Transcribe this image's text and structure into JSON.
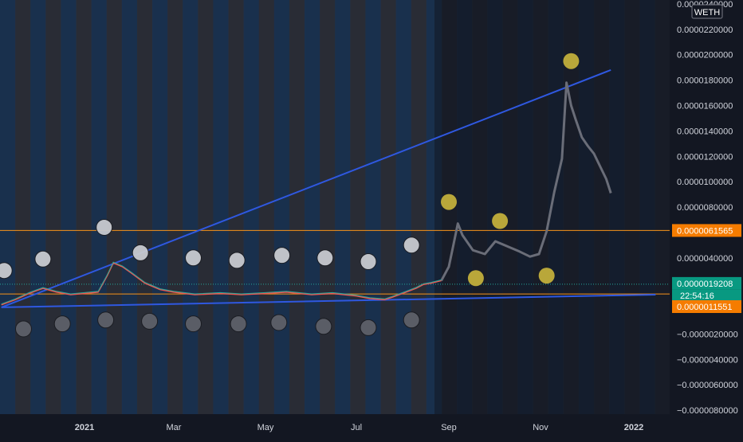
{
  "symbol_badge": "WETH",
  "colors": {
    "background": "#131722",
    "stripe_blue": "#1b3352",
    "stripe_gray": "#2c2f37",
    "trend_line": "#2f58e0",
    "horizontal_level": "#f7931a",
    "price_badge_green": "#089981",
    "price_badge_orange": "#f57c00",
    "actual_green": "#26a69a",
    "actual_red": "#ef5350",
    "projection_gray": "#6a6d78",
    "circle_white": "#c8cacf",
    "circle_gray": "#5a5d66",
    "circle_gold": "#b9a73a"
  },
  "chart_data": {
    "type": "line",
    "y_axis": {
      "ticks": [
        "0.0000240000",
        "0.0000220000",
        "0.0000200000",
        "0.0000180000",
        "0.0000160000",
        "0.0000140000",
        "0.0000120000",
        "0.0000100000",
        "0.0000080000",
        "0.0000060000",
        "0.0000040000",
        "0.0000020000",
        "0.0000000000",
        "−0.0000020000",
        "−0.0000040000",
        "−0.0000060000",
        "−0.0000080000"
      ],
      "ylim": [
        -8.2e-06,
        2.4e-05
      ]
    },
    "x_axis": {
      "ticks": [
        "2021",
        "Mar",
        "May",
        "Jul",
        "Sep",
        "Nov",
        "2022"
      ]
    },
    "price_badges": [
      {
        "label": "0.0000061565",
        "value": 6.1565e-06,
        "color": "orange"
      },
      {
        "label": "0.0000019208",
        "value": 1.9208e-06,
        "color": "green"
      },
      {
        "label": "22:54:16",
        "value": 1.9208e-06,
        "color": "green",
        "sub": true
      },
      {
        "label": "0.0000011551",
        "value": 1.1551e-06,
        "color": "orange"
      }
    ],
    "horizontal_levels": [
      6.1565e-06,
      1.1551e-06
    ],
    "current_price": 1.9208e-06,
    "trend_lines": [
      {
        "from": [
          "2020-11-02",
          1e-07
        ],
        "to": [
          "2021-12-17",
          1.88e-05
        ]
      },
      {
        "from": [
          "2020-11-02",
          1e-07
        ],
        "to": [
          "2022-01-15",
          1.1e-06
        ]
      }
    ],
    "actual_series": {
      "name": "",
      "x": [
        "2020-11-02",
        "2020-11-12",
        "2020-11-22",
        "2020-12-02",
        "2020-12-12",
        "2020-12-22",
        "2021-01-01",
        "2021-01-10",
        "2021-01-16",
        "2021-01-20",
        "2021-01-26",
        "2021-02-01",
        "2021-02-10",
        "2021-02-20",
        "2021-03-01",
        "2021-03-15",
        "2021-04-01",
        "2021-04-15",
        "2021-05-01",
        "2021-05-15",
        "2021-06-01",
        "2021-06-15",
        "2021-07-01",
        "2021-07-10",
        "2021-07-20",
        "2021-07-25",
        "2021-08-01",
        "2021-08-10",
        "2021-08-15",
        "2021-08-20",
        "2021-08-27"
      ],
      "values": [
        3e-07,
        7e-07,
        1.2e-06,
        1.6e-06,
        1.3e-06,
        1.1e-06,
        1.2e-06,
        1.3e-06,
        2.6e-06,
        3.6e-06,
        3.3e-06,
        2.8e-06,
        2e-06,
        1.5e-06,
        1.3e-06,
        1.1e-06,
        1.2e-06,
        1.1e-06,
        1.2e-06,
        1.3e-06,
        1.1e-06,
        1.2e-06,
        1e-06,
        8e-07,
        7e-07,
        9e-07,
        1.2e-06,
        1.6e-06,
        1.9e-06,
        2e-06,
        2.2e-06
      ]
    },
    "projection_series": {
      "name": "",
      "x": [
        "2021-08-27",
        "2021-09-01",
        "2021-09-04",
        "2021-09-07",
        "2021-09-10",
        "2021-09-17",
        "2021-09-25",
        "2021-10-02",
        "2021-10-10",
        "2021-10-18",
        "2021-10-25",
        "2021-10-31",
        "2021-11-05",
        "2021-11-10",
        "2021-11-15",
        "2021-11-18",
        "2021-11-21",
        "2021-11-24",
        "2021-11-28",
        "2021-12-02",
        "2021-12-06",
        "2021-12-10",
        "2021-12-14",
        "2021-12-17"
      ],
      "values": [
        2.2e-06,
        3.3e-06,
        5e-06,
        6.7e-06,
        5.8e-06,
        4.6e-06,
        4.3e-06,
        5.3e-06,
        4.9e-06,
        4.5e-06,
        4.1e-06,
        4.3e-06,
        6.1e-06,
        9.2e-06,
        1.18e-05,
        1.78e-05,
        1.6e-05,
        1.49e-05,
        1.35e-05,
        1.28e-05,
        1.22e-05,
        1.12e-05,
        1.02e-05,
        9.1e-06
      ]
    },
    "markers": [
      {
        "date": "2020-11-04",
        "value": 3e-06,
        "kind": "white"
      },
      {
        "date": "2020-12-02",
        "value": 3.9e-06,
        "kind": "white"
      },
      {
        "date": "2021-01-14",
        "value": 6.4e-06,
        "kind": "white"
      },
      {
        "date": "2021-02-07",
        "value": 4.4e-06,
        "kind": "white"
      },
      {
        "date": "2021-03-14",
        "value": 4e-06,
        "kind": "white"
      },
      {
        "date": "2021-04-12",
        "value": 3.8e-06,
        "kind": "white"
      },
      {
        "date": "2021-05-12",
        "value": 4.2e-06,
        "kind": "white"
      },
      {
        "date": "2021-06-10",
        "value": 4e-06,
        "kind": "white"
      },
      {
        "date": "2021-07-09",
        "value": 3.7e-06,
        "kind": "white"
      },
      {
        "date": "2021-08-07",
        "value": 5e-06,
        "kind": "white"
      },
      {
        "date": "2020-11-18",
        "value": -1.6e-06,
        "kind": "gray"
      },
      {
        "date": "2020-12-16",
        "value": -1.2e-06,
        "kind": "gray"
      },
      {
        "date": "2021-01-15",
        "value": -9e-07,
        "kind": "gray"
      },
      {
        "date": "2021-02-13",
        "value": -1e-06,
        "kind": "gray"
      },
      {
        "date": "2021-03-14",
        "value": -1.2e-06,
        "kind": "gray"
      },
      {
        "date": "2021-04-13",
        "value": -1.2e-06,
        "kind": "gray"
      },
      {
        "date": "2021-05-10",
        "value": -1.1e-06,
        "kind": "gray"
      },
      {
        "date": "2021-06-09",
        "value": -1.4e-06,
        "kind": "gray"
      },
      {
        "date": "2021-07-09",
        "value": -1.5e-06,
        "kind": "gray"
      },
      {
        "date": "2021-08-07",
        "value": -9e-07,
        "kind": "gray"
      },
      {
        "date": "2021-09-01",
        "value": 8.4e-06,
        "kind": "gold"
      },
      {
        "date": "2021-09-19",
        "value": 2.4e-06,
        "kind": "gold"
      },
      {
        "date": "2021-10-05",
        "value": 6.9e-06,
        "kind": "gold"
      },
      {
        "date": "2021-11-05",
        "value": 2.6e-06,
        "kind": "gold"
      },
      {
        "date": "2021-11-21",
        "value": 1.95e-05,
        "kind": "gold"
      }
    ],
    "grid": false
  }
}
